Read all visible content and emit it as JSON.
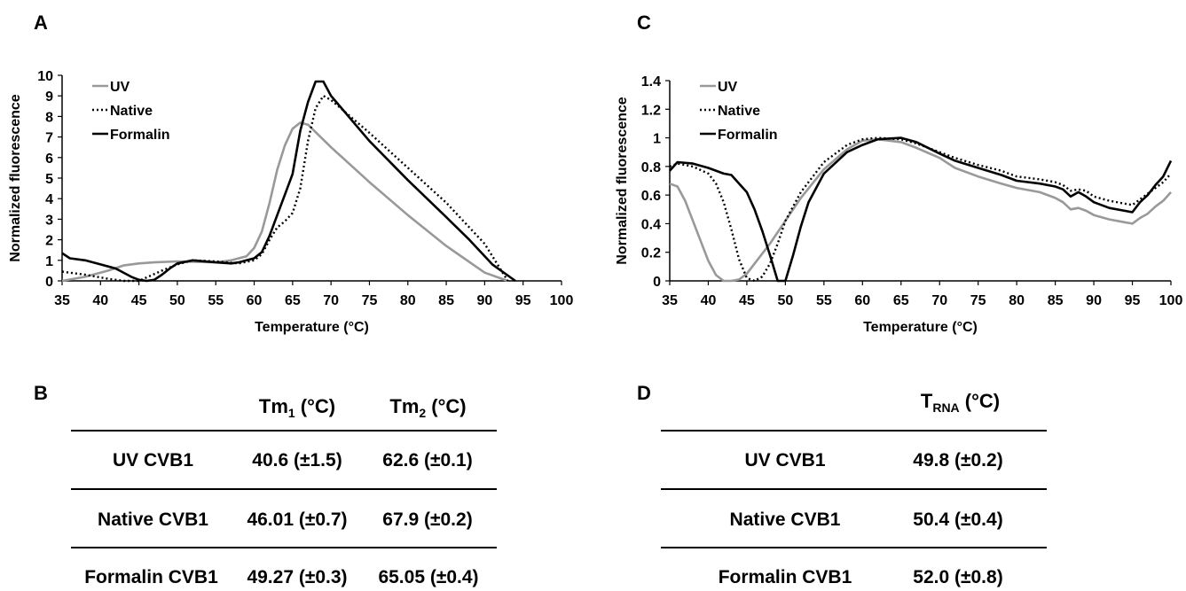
{
  "panels": {
    "a": "A",
    "b": "B",
    "c": "C",
    "d": "D"
  },
  "chart_data": [
    {
      "type": "line",
      "panel": "A",
      "xlabel": "Temperature (°C)",
      "ylabel": "Normalized fluorescence",
      "xlim": [
        35,
        100
      ],
      "ylim": [
        0,
        10
      ],
      "xticks": [
        35,
        40,
        45,
        50,
        55,
        60,
        65,
        70,
        75,
        80,
        85,
        90,
        95,
        100
      ],
      "yticks": [
        0,
        1,
        2,
        3,
        4,
        5,
        6,
        7,
        8,
        9,
        10
      ],
      "grid": false,
      "legend_position": "top-left",
      "series": [
        {
          "name": "UV",
          "color": "#999999",
          "dash": "solid",
          "x": [
            35,
            38,
            41,
            43,
            45,
            47,
            50,
            55,
            57,
            59,
            60,
            61,
            62,
            63,
            64,
            65,
            66,
            67,
            70,
            75,
            80,
            85,
            90,
            93
          ],
          "y": [
            0,
            0.2,
            0.5,
            0.75,
            0.85,
            0.9,
            0.95,
            0.9,
            1.0,
            1.2,
            1.6,
            2.4,
            3.8,
            5.4,
            6.6,
            7.4,
            7.7,
            7.6,
            6.5,
            4.8,
            3.2,
            1.7,
            0.4,
            0
          ]
        },
        {
          "name": "Native",
          "color": "#000000",
          "dash": "dotted",
          "x": [
            35,
            38,
            41,
            43,
            45,
            48,
            50,
            52,
            55,
            58,
            60,
            61,
            62,
            63,
            64,
            65,
            66,
            67,
            68,
            69,
            70,
            75,
            80,
            85,
            90,
            93
          ],
          "y": [
            0.45,
            0.3,
            0.1,
            0,
            0,
            0.5,
            0.8,
            1.0,
            0.95,
            0.85,
            1.0,
            1.3,
            2.0,
            2.6,
            2.9,
            3.3,
            4.5,
            6.8,
            8.4,
            9.0,
            8.8,
            7.2,
            5.5,
            3.8,
            1.8,
            0
          ]
        },
        {
          "name": "Formalin",
          "color": "#000000",
          "dash": "solid",
          "x": [
            35,
            36,
            38,
            40,
            42,
            44,
            45,
            46,
            47,
            48,
            49,
            50,
            52,
            55,
            57,
            58,
            59,
            60,
            61,
            62,
            63,
            64,
            65,
            66,
            67,
            68,
            69,
            70,
            75,
            80,
            85,
            88,
            91,
            94
          ],
          "y": [
            1.35,
            1.1,
            1.0,
            0.8,
            0.6,
            0.2,
            0.05,
            0,
            0.05,
            0.3,
            0.6,
            0.85,
            1.0,
            0.9,
            0.85,
            0.9,
            1.0,
            1.1,
            1.4,
            2.2,
            3.2,
            4.2,
            5.2,
            7.3,
            8.7,
            9.7,
            9.7,
            9.0,
            6.8,
            4.9,
            3.1,
            2.0,
            0.8,
            0
          ]
        }
      ]
    },
    {
      "type": "line",
      "panel": "C",
      "xlabel": "Temperature (°C)",
      "ylabel": "Normalized fluorescence",
      "xlim": [
        35,
        100
      ],
      "ylim": [
        0,
        1.4
      ],
      "xticks": [
        35,
        40,
        45,
        50,
        55,
        60,
        65,
        70,
        75,
        80,
        85,
        90,
        95,
        100
      ],
      "yticks": [
        0,
        0.2,
        0.4,
        0.6,
        0.8,
        1,
        1.2,
        1.4
      ],
      "grid": false,
      "legend_position": "top-left",
      "series": [
        {
          "name": "UV",
          "color": "#999999",
          "dash": "solid",
          "x": [
            35,
            36,
            37,
            38,
            39,
            40,
            41,
            42,
            43,
            44,
            45,
            46,
            48,
            50,
            52,
            55,
            58,
            60,
            62,
            65,
            67,
            70,
            72,
            75,
            78,
            80,
            83,
            85,
            86,
            87,
            88,
            89,
            90,
            92,
            94,
            95,
            96,
            97,
            98,
            99,
            100
          ],
          "y": [
            0.68,
            0.66,
            0.56,
            0.42,
            0.28,
            0.14,
            0.04,
            0,
            0,
            0.01,
            0.05,
            0.12,
            0.26,
            0.42,
            0.58,
            0.78,
            0.92,
            0.98,
            0.99,
            0.97,
            0.93,
            0.86,
            0.79,
            0.73,
            0.68,
            0.65,
            0.62,
            0.58,
            0.55,
            0.5,
            0.51,
            0.49,
            0.46,
            0.43,
            0.41,
            0.4,
            0.44,
            0.47,
            0.52,
            0.56,
            0.62
          ]
        },
        {
          "name": "Native",
          "color": "#000000",
          "dash": "dotted",
          "x": [
            35,
            36,
            38,
            40,
            41,
            42,
            43,
            44,
            45,
            46,
            47,
            48,
            49,
            50,
            52,
            55,
            58,
            60,
            62,
            65,
            67,
            70,
            72,
            75,
            78,
            80,
            83,
            85,
            86,
            87,
            88,
            89,
            90,
            92,
            94,
            95,
            96,
            97,
            98,
            99,
            100
          ],
          "y": [
            0.8,
            0.82,
            0.8,
            0.75,
            0.68,
            0.55,
            0.36,
            0.15,
            0.02,
            0,
            0.03,
            0.12,
            0.26,
            0.42,
            0.62,
            0.83,
            0.95,
            0.99,
            1.0,
            0.99,
            0.96,
            0.9,
            0.86,
            0.81,
            0.77,
            0.73,
            0.71,
            0.69,
            0.67,
            0.63,
            0.64,
            0.63,
            0.59,
            0.56,
            0.54,
            0.53,
            0.57,
            0.61,
            0.65,
            0.69,
            0.75
          ]
        },
        {
          "name": "Formalin",
          "color": "#000000",
          "dash": "solid",
          "x": [
            35,
            35.5,
            36,
            38,
            40,
            42,
            43,
            44,
            45,
            46,
            47,
            48,
            49,
            50,
            51,
            52,
            53,
            55,
            58,
            60,
            62,
            65,
            67,
            70,
            72,
            75,
            78,
            80,
            83,
            85,
            86,
            87,
            88,
            89,
            90,
            92,
            94,
            95,
            96,
            97,
            98,
            99,
            100
          ],
          "y": [
            0.77,
            0.8,
            0.83,
            0.82,
            0.79,
            0.75,
            0.74,
            0.68,
            0.62,
            0.5,
            0.35,
            0.18,
            0,
            0,
            0.18,
            0.38,
            0.55,
            0.75,
            0.9,
            0.95,
            0.99,
            1.0,
            0.97,
            0.89,
            0.84,
            0.79,
            0.74,
            0.7,
            0.68,
            0.66,
            0.64,
            0.59,
            0.62,
            0.59,
            0.55,
            0.51,
            0.49,
            0.48,
            0.55,
            0.6,
            0.67,
            0.73,
            0.84
          ]
        }
      ]
    },
    {
      "type": "table",
      "panel": "B",
      "columns": [
        "",
        "Tm1 (°C)",
        "Tm2 (°C)"
      ],
      "rows": [
        [
          "UV CVB1",
          "40.6 (±1.5)",
          "62.6 (±0.1)"
        ],
        [
          "Native CVB1",
          "46.01 (±0.7)",
          "67.9 (±0.2)"
        ],
        [
          "Formalin CVB1",
          "49.27 (±0.3)",
          "65.05 (±0.4)"
        ]
      ]
    },
    {
      "type": "table",
      "panel": "D",
      "columns": [
        "",
        "TRNA (°C)"
      ],
      "rows": [
        [
          "UV CVB1",
          "49.8 (±0.2)"
        ],
        [
          "Native CVB1",
          "50.4 (±0.4)"
        ],
        [
          "Formalin CVB1",
          "52.0 (±0.8)"
        ]
      ]
    }
  ],
  "table_b": {
    "header_tm1_main": "Tm",
    "header_tm1_sub": "1",
    "header_tm1_unit": " (°C)",
    "header_tm2_main": "Tm",
    "header_tm2_sub": "2",
    "header_tm2_unit": " (°C)",
    "rows": [
      {
        "label": "UV CVB1",
        "tm1": "40.6 (±1.5)",
        "tm2": "62.6 (±0.1)"
      },
      {
        "label": "Native CVB1",
        "tm1": "46.01 (±0.7)",
        "tm2": "67.9 (±0.2)"
      },
      {
        "label": "Formalin CVB1",
        "tm1": "49.27 (±0.3)",
        "tm2": "65.05 (±0.4)"
      }
    ]
  },
  "table_d": {
    "header_main": "T",
    "header_sub": "RNA",
    "header_unit": " (°C)",
    "rows": [
      {
        "label": "UV CVB1",
        "t": "49.8 (±0.2)"
      },
      {
        "label": "Native CVB1",
        "t": "50.4 (±0.4)"
      },
      {
        "label": "Formalin CVB1",
        "t": "52.0 (±0.8)"
      }
    ]
  }
}
